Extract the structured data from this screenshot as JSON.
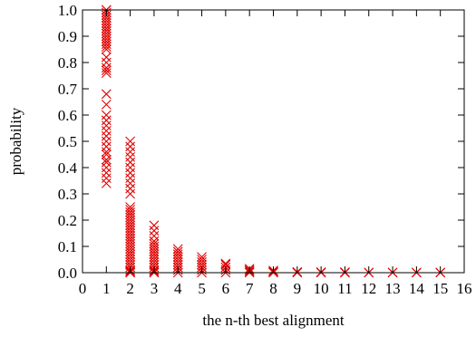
{
  "chart_data": {
    "type": "scatter",
    "title": "",
    "xlabel": "the n-th best alignment",
    "ylabel": "probability",
    "xlim": [
      0,
      16
    ],
    "ylim": [
      0,
      1.0
    ],
    "xticks": [
      "0",
      "1",
      "2",
      "3",
      "4",
      "5",
      "6",
      "7",
      "8",
      "9",
      "10",
      "11",
      "12",
      "13",
      "14",
      "15",
      "16"
    ],
    "yticks": [
      "0.0",
      "0.1",
      "0.2",
      "0.3",
      "0.4",
      "0.5",
      "0.6",
      "0.7",
      "0.8",
      "0.9",
      "1.0"
    ],
    "grid": false,
    "legend": "none",
    "marker": "x",
    "color": "#e00000",
    "series": [
      {
        "x": [
          1,
          1,
          1,
          1,
          1,
          1,
          1,
          1,
          1,
          1,
          1,
          1,
          1,
          1,
          1,
          1,
          1,
          1,
          1,
          1,
          1,
          1,
          1,
          1,
          1,
          1,
          1,
          1,
          1,
          1,
          1,
          1,
          1,
          1,
          1,
          1,
          1,
          1,
          1
        ],
        "y": [
          1.0,
          1.0,
          0.99,
          0.98,
          0.97,
          0.96,
          0.95,
          0.94,
          0.93,
          0.92,
          0.91,
          0.9,
          0.89,
          0.88,
          0.87,
          0.86,
          0.85,
          0.82,
          0.8,
          0.78,
          0.77,
          0.76,
          0.68,
          0.64,
          0.6,
          0.58,
          0.56,
          0.54,
          0.52,
          0.5,
          0.48,
          0.46,
          0.45,
          0.43,
          0.42,
          0.4,
          0.38,
          0.36,
          0.34
        ]
      },
      {
        "x": [
          2,
          2,
          2,
          2,
          2,
          2,
          2,
          2,
          2,
          2,
          2,
          2,
          2,
          2,
          2,
          2,
          2,
          2,
          2,
          2,
          2,
          2,
          2,
          2,
          2,
          2,
          2,
          2,
          2,
          2,
          2,
          2,
          2,
          2,
          2,
          2,
          2,
          2,
          2
        ],
        "y": [
          0.5,
          0.48,
          0.46,
          0.44,
          0.42,
          0.4,
          0.38,
          0.36,
          0.34,
          0.32,
          0.3,
          0.25,
          0.24,
          0.23,
          0.22,
          0.21,
          0.2,
          0.19,
          0.18,
          0.17,
          0.16,
          0.15,
          0.14,
          0.13,
          0.12,
          0.11,
          0.1,
          0.09,
          0.08,
          0.07,
          0.06,
          0.05,
          0.04,
          0.03,
          0.02,
          0.01,
          0.005,
          0.002,
          0.0
        ]
      },
      {
        "x": [
          3,
          3,
          3,
          3,
          3,
          3,
          3,
          3,
          3,
          3,
          3,
          3,
          3,
          3,
          3,
          3,
          3
        ],
        "y": [
          0.18,
          0.16,
          0.14,
          0.12,
          0.11,
          0.1,
          0.09,
          0.08,
          0.07,
          0.06,
          0.05,
          0.04,
          0.03,
          0.02,
          0.01,
          0.005,
          0.0
        ]
      },
      {
        "x": [
          4,
          4,
          4,
          4,
          4,
          4,
          4,
          4,
          4,
          4
        ],
        "y": [
          0.09,
          0.08,
          0.07,
          0.06,
          0.05,
          0.04,
          0.03,
          0.02,
          0.01,
          0.0
        ]
      },
      {
        "x": [
          5,
          5,
          5,
          5,
          5,
          5,
          5
        ],
        "y": [
          0.06,
          0.05,
          0.04,
          0.03,
          0.02,
          0.01,
          0.0
        ]
      },
      {
        "x": [
          6,
          6,
          6,
          6,
          6
        ],
        "y": [
          0.035,
          0.03,
          0.02,
          0.01,
          0.0
        ]
      },
      {
        "x": [
          7,
          7,
          7,
          7
        ],
        "y": [
          0.015,
          0.01,
          0.005,
          0.0
        ]
      },
      {
        "x": [
          8,
          8,
          8
        ],
        "y": [
          0.008,
          0.004,
          0.0
        ]
      },
      {
        "x": [
          9,
          10,
          11,
          12,
          13,
          14,
          15,
          9,
          10,
          11,
          12,
          13,
          14,
          15
        ],
        "y": [
          0.003,
          0.002,
          0.002,
          0.001,
          0.001,
          0.001,
          0.001,
          0.0,
          0.0,
          0.0,
          0.0,
          0.0,
          0.0,
          0.0
        ]
      }
    ]
  }
}
